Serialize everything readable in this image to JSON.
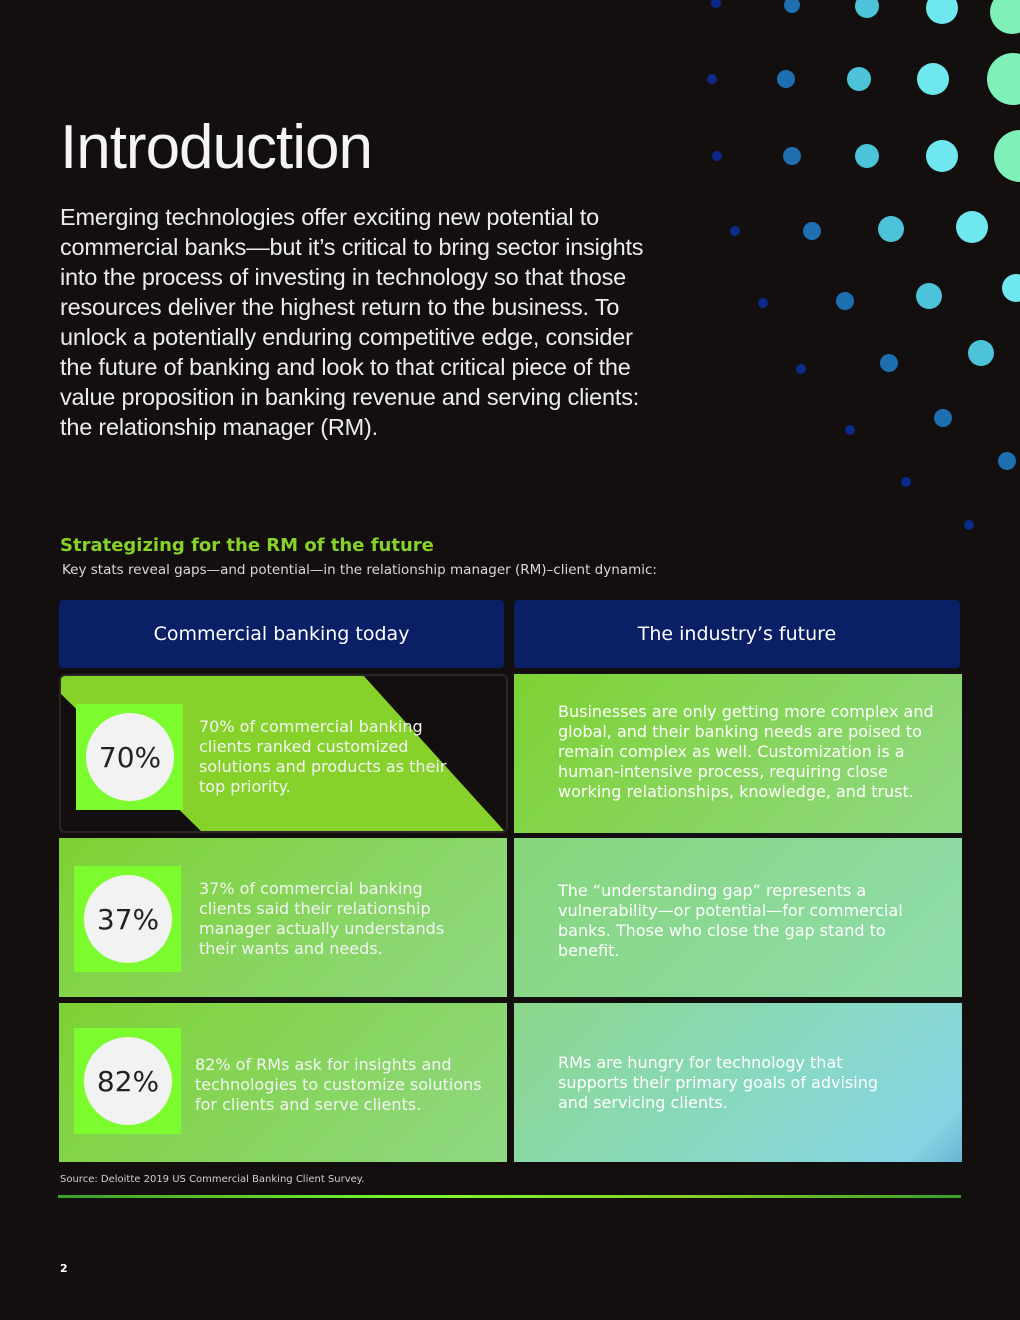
{
  "title": "Introduction",
  "intro": "Emerging technologies offer exciting new potential to commercial banks—but it’s critical to bring sector insights into the process of investing in technology so that those resources deliver the highest return to the business. To unlock a potentially enduring competitive edge, consider the future of banking and look to that critical piece of the value proposition in banking revenue and serving clients: the relationship manager (RM).",
  "section": {
    "heading": "Strategizing for the RM of the future",
    "subheading": "Key stats reveal gaps—and potential—in the relationship manager (RM)–client dynamic:"
  },
  "table": {
    "headers": [
      "Commercial banking today",
      "The industry’s future"
    ],
    "rows": [
      {
        "stat": "70%",
        "today": "70% of commercial banking clients ranked customized solutions and products as their top priority.",
        "future": "Businesses are only getting more complex and global, and their banking needs are poised to remain complex as well. Customization is a human-intensive process, requiring close working relationships, knowledge, and trust."
      },
      {
        "stat": "37%",
        "today": "37% of commercial banking clients said their relationship manager actually understands their wants and needs.",
        "future": "The “understanding gap” represents a vulnerability—or potential—for commercial banks. Those who close the gap stand to benefit."
      },
      {
        "stat": "82%",
        "today": "82% of RMs ask for insights and technologies to customize solutions for clients and serve clients.",
        "future": "RMs are hungry for technology that supports their primary goals of advising and servicing clients."
      }
    ]
  },
  "source": "Source: Deloitte 2019 US Commercial Banking Client Survey.",
  "page_number": "2",
  "colors": {
    "background": "#130f0f",
    "header": "#0a1f66",
    "accent_green": "#7cfc2f",
    "heading_green": "#86d12a"
  }
}
